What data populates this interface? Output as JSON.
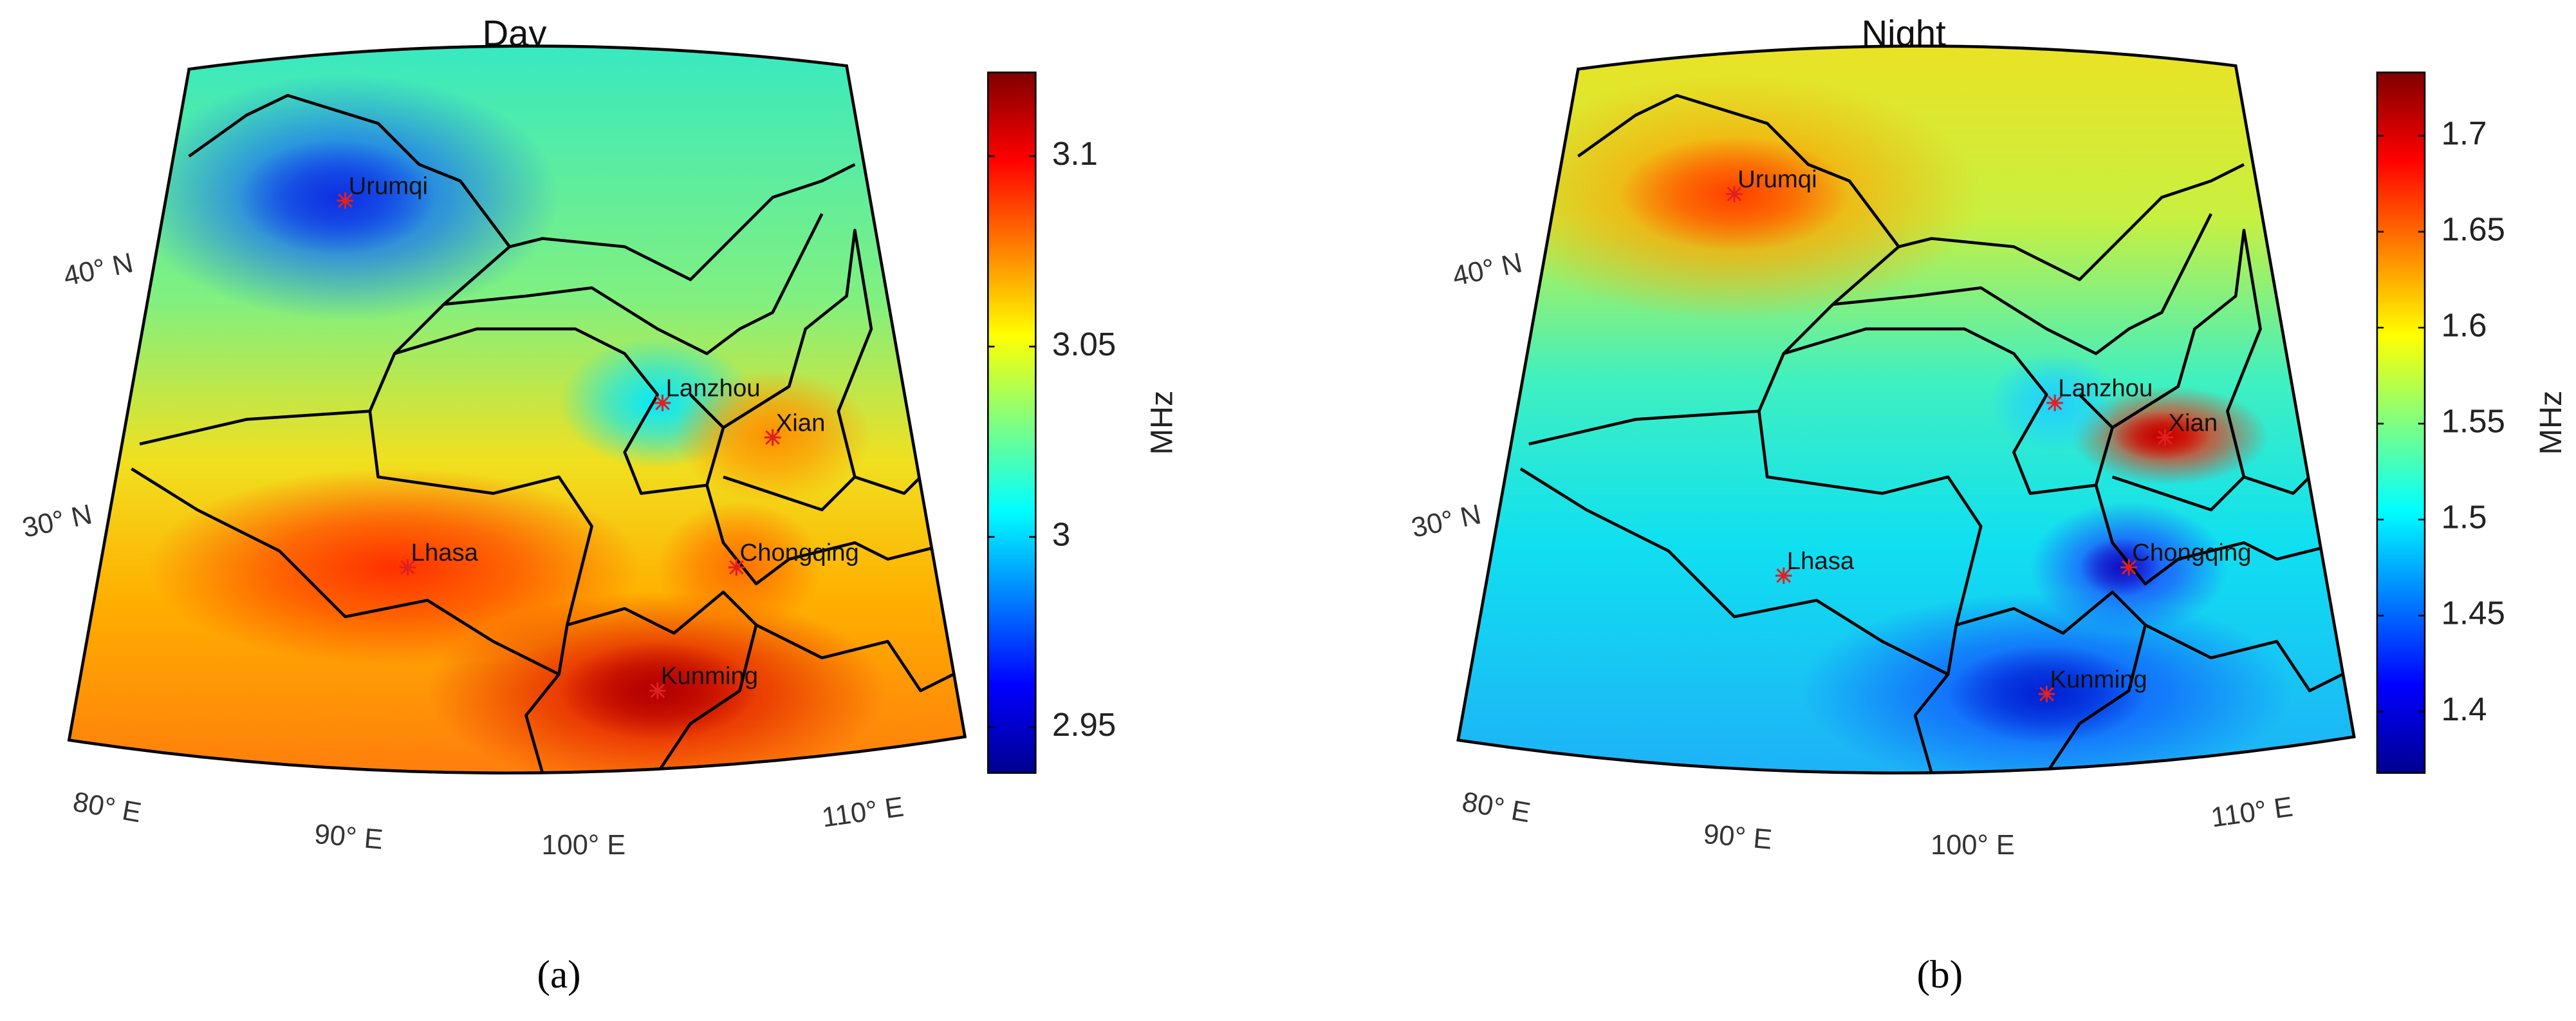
{
  "panels": [
    {
      "title": "Day",
      "caption": "(a)",
      "cities": [
        "Urumqi",
        "Lanzhou",
        "Xian",
        "Lhasa",
        "Chongqing",
        "Kunming"
      ],
      "lat_labels": [
        "40° N",
        "30° N"
      ],
      "lon_labels": [
        "80° E",
        "90° E",
        "100° E",
        "110° E"
      ],
      "colorbar": {
        "label": "MHz",
        "lim": [
          2.938,
          3.122
        ],
        "ticks": [
          2.95,
          3,
          3.05,
          3.1
        ]
      }
    },
    {
      "title": "Night",
      "caption": "(b)",
      "cities": [
        "Urumqi",
        "Lanzhou",
        "Xian",
        "Lhasa",
        "Chongqing",
        "Kunming"
      ],
      "lat_labels": [
        "40° N",
        "30° N"
      ],
      "lon_labels": [
        "80° E",
        "90° E",
        "100° E",
        "110° E"
      ],
      "colorbar": {
        "label": "MHz",
        "lim": [
          1.368,
          1.733
        ],
        "ticks": [
          1.4,
          1.45,
          1.5,
          1.55,
          1.6,
          1.65,
          1.7
        ]
      }
    }
  ]
}
